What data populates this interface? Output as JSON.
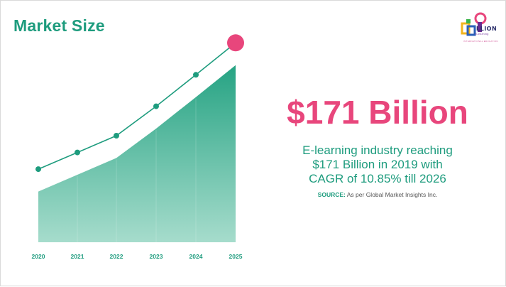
{
  "header": {
    "title": "Market Size"
  },
  "logo": {
    "word": "LLION",
    "sub": "eLearning",
    "tagline": "INTERNATIONAL EDUCATION"
  },
  "headline": {
    "value": "$171 Billion",
    "line1": "E-learning industry reaching",
    "line2": "$171 Billion in 2019 with",
    "line3": "CAGR of 10.85% till 2026"
  },
  "source": {
    "label": "SOURCE:",
    "text": " As per Global Market Insights Inc."
  },
  "colors": {
    "accent_green": "#1e9c7e",
    "accent_pink": "#e8467c",
    "area_top": "#26a383",
    "area_bottom": "#a6dccc"
  },
  "chart_data": {
    "type": "area",
    "categories": [
      "2020",
      "2021",
      "2022",
      "2023",
      "2024",
      "2025"
    ],
    "series": [
      {
        "values": [
          1.0,
          1.33,
          1.66,
          2.24,
          2.86,
          3.49
        ]
      }
    ],
    "markers": [
      1.44,
      1.77,
      2.1,
      2.68,
      3.3,
      3.93
    ],
    "title": "",
    "xlabel": "",
    "ylabel": "",
    "ylim": [
      0,
      4.2
    ],
    "grid": false
  }
}
